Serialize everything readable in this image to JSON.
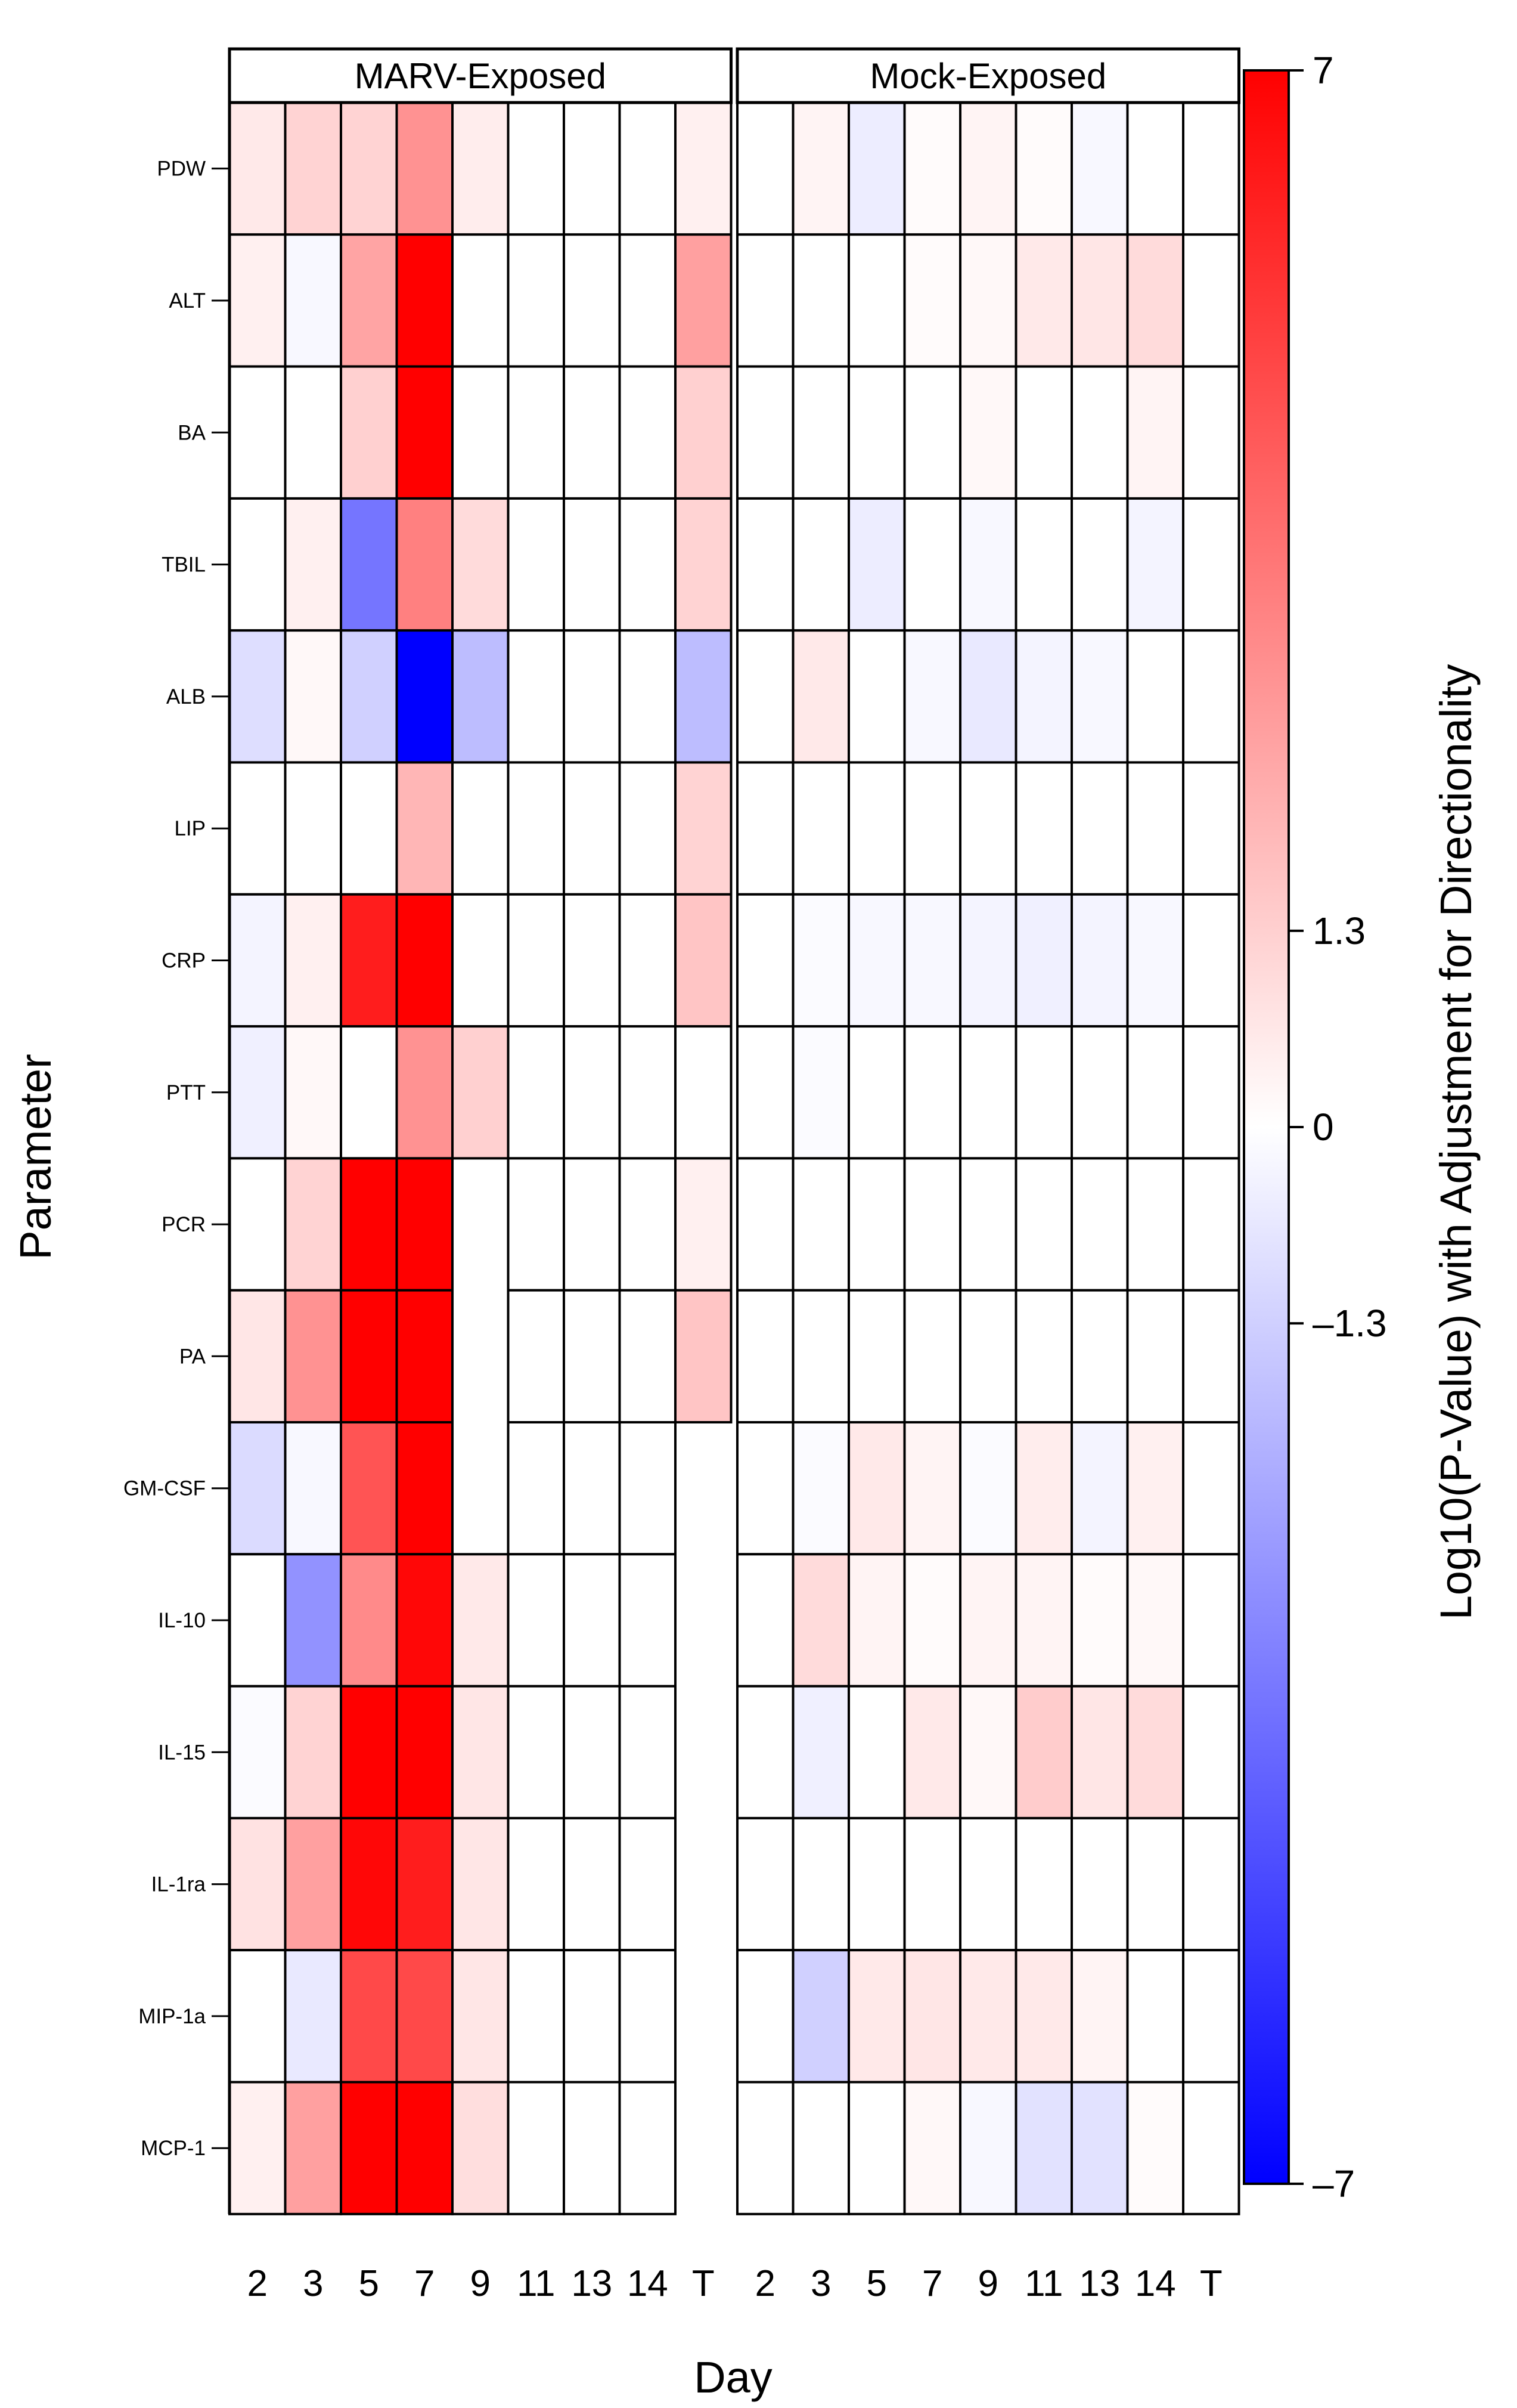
{
  "chart_data": {
    "type": "heatmap",
    "title": "",
    "xlabel": "Day",
    "ylabel": "Parameter",
    "panels": [
      "MARV-Exposed",
      "Mock-Exposed"
    ],
    "days": [
      "2",
      "3",
      "5",
      "7",
      "9",
      "11",
      "13",
      "14",
      "T"
    ],
    "parameters": [
      "PDW",
      "ALT",
      "BA",
      "TBIL",
      "ALB",
      "LIP",
      "CRP",
      "PTT",
      "PCR",
      "PA",
      "GM-CSF",
      "IL-10",
      "IL-15",
      "IL-1ra",
      "MIP-1a",
      "MCP-1"
    ],
    "missing_value_note": "null = empty (no cell drawn)",
    "values": {
      "MARV-Exposed": [
        [
          0.6,
          1.2,
          1.2,
          3.0,
          0.5,
          0.0,
          0.0,
          0.0,
          0.4
        ],
        [
          0.4,
          -0.2,
          2.5,
          7.0,
          0.0,
          0.0,
          0.0,
          0.0,
          2.6
        ],
        [
          0.0,
          0.0,
          1.3,
          7.0,
          0.0,
          0.0,
          0.0,
          0.0,
          1.3
        ],
        [
          0.0,
          0.4,
          -3.8,
          3.5,
          1.0,
          0.0,
          0.0,
          0.0,
          1.2
        ],
        [
          -0.9,
          0.2,
          -1.3,
          -7.0,
          -1.8,
          0.0,
          0.0,
          0.0,
          -1.8
        ],
        [
          0.0,
          0.0,
          0.0,
          2.0,
          0.0,
          0.0,
          0.0,
          0.0,
          1.2
        ],
        [
          -0.3,
          0.4,
          6.2,
          7.0,
          0.0,
          0.0,
          0.0,
          0.0,
          1.6
        ],
        [
          -0.4,
          0.2,
          0.0,
          3.0,
          1.3,
          0.0,
          0.0,
          0.0,
          0.0
        ],
        [
          0.0,
          1.2,
          7.0,
          7.0,
          null,
          0.0,
          0.0,
          0.0,
          0.4
        ],
        [
          0.7,
          3.0,
          7.0,
          7.0,
          null,
          0.0,
          0.0,
          0.0,
          1.6
        ],
        [
          -1.0,
          -0.2,
          4.7,
          7.0,
          null,
          0.0,
          0.0,
          0.0,
          null
        ],
        [
          0.0,
          -3.0,
          3.2,
          6.8,
          0.6,
          0.0,
          0.0,
          0.0,
          null
        ],
        [
          -0.1,
          1.2,
          7.0,
          7.0,
          0.7,
          0.0,
          0.0,
          0.0,
          null
        ],
        [
          0.8,
          2.6,
          6.8,
          6.2,
          0.7,
          0.0,
          0.0,
          0.0,
          null
        ],
        [
          0.0,
          -0.6,
          5.0,
          5.0,
          0.7,
          0.0,
          0.0,
          0.0,
          null
        ],
        [
          0.4,
          2.6,
          7.0,
          7.0,
          0.9,
          0.0,
          0.0,
          0.0,
          null
        ]
      ],
      "Mock-Exposed": [
        [
          0.0,
          0.3,
          -0.5,
          0.1,
          0.3,
          0.1,
          -0.2,
          0.0,
          0.0
        ],
        [
          0.0,
          0.0,
          0.0,
          0.1,
          0.2,
          0.6,
          0.7,
          1.0,
          0.0
        ],
        [
          0.0,
          0.0,
          0.0,
          0.0,
          0.2,
          0.0,
          0.0,
          0.3,
          0.0
        ],
        [
          0.0,
          0.0,
          -0.5,
          0.0,
          -0.2,
          0.0,
          0.0,
          -0.3,
          0.0
        ],
        [
          0.0,
          0.6,
          0.0,
          -0.2,
          -0.6,
          -0.3,
          -0.2,
          0.0,
          0.0
        ],
        [
          0.0,
          0.0,
          0.0,
          0.0,
          0.0,
          0.0,
          0.0,
          0.0,
          0.0
        ],
        [
          0.0,
          -0.1,
          -0.2,
          -0.2,
          -0.3,
          -0.4,
          -0.3,
          -0.2,
          0.0
        ],
        [
          0.0,
          -0.1,
          0.0,
          0.0,
          0.0,
          0.0,
          0.0,
          0.0,
          0.0
        ],
        [
          0.0,
          0.0,
          0.0,
          0.0,
          0.0,
          0.0,
          0.0,
          0.0,
          0.0
        ],
        [
          0.0,
          0.0,
          0.0,
          0.0,
          0.0,
          0.0,
          0.0,
          0.0,
          0.0
        ],
        [
          0.0,
          -0.1,
          0.6,
          0.3,
          -0.1,
          0.5,
          -0.3,
          0.4,
          0.0
        ],
        [
          0.0,
          1.0,
          0.3,
          0.1,
          0.3,
          0.3,
          0.1,
          0.2,
          0.0
        ],
        [
          0.0,
          -0.4,
          0.0,
          0.6,
          0.2,
          1.4,
          0.7,
          1.0,
          0.0
        ],
        [
          0.0,
          0.0,
          0.0,
          0.0,
          0.0,
          0.0,
          0.0,
          0.0,
          0.0
        ],
        [
          0.0,
          -1.3,
          0.6,
          0.7,
          0.6,
          0.6,
          0.3,
          0.0,
          0.0
        ],
        [
          0.0,
          0.0,
          0.0,
          0.2,
          -0.2,
          -0.8,
          -0.8,
          0.1,
          0.0
        ]
      ]
    },
    "colorbar": {
      "label": "Log10(P-Value) with Adjustment for Directionality",
      "min": -7,
      "max": 7,
      "ticks": [
        7,
        1.3,
        0,
        -1.3,
        -7
      ],
      "tick_labels": [
        "7",
        "1.3",
        "0",
        "–1.3",
        "–7"
      ],
      "low_color": "#0000ff",
      "mid_color": "#ffffff",
      "high_color": "#ff0000"
    }
  }
}
